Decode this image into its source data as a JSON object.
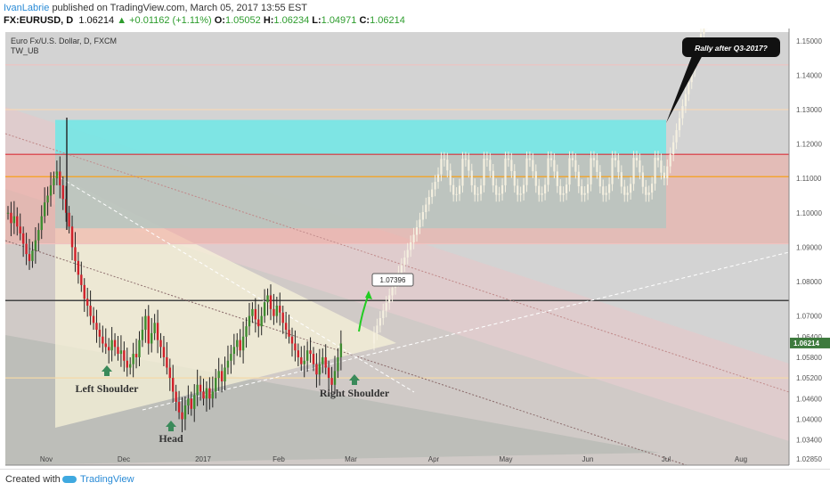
{
  "header": {
    "author": "IvanLabrie",
    "published": "published on TradingView.com, March 05, 2017 13:55 EST",
    "symbol": "FX:EURUSD, D",
    "last": "1.06214",
    "change": "▲ +0.01162 (+1.11%)",
    "o_label": "O:",
    "o_val": "1.05052",
    "h_label": "H:",
    "h_val": "1.06234",
    "l_label": "L:",
    "l_val": "1.04971",
    "c_label": "C:",
    "c_val": "1.06214"
  },
  "footer": {
    "created_with": "Created with",
    "brand": "TradingView"
  },
  "chart_data": {
    "type": "candlestick",
    "title": "Euro Fx/U.S. Dollar, D, FXCM",
    "indicator": "TW_UB",
    "y_ticks": [
      "1.15000",
      "1.14000",
      "1.13000",
      "1.12000",
      "1.11000",
      "1.10000",
      "1.09000",
      "1.08000",
      "1.07000",
      "1.06400",
      "1.05800",
      "1.05200",
      "1.04600",
      "1.04000",
      "1.03400",
      "1.02850"
    ],
    "y_tick_values": [
      1.15,
      1.14,
      1.13,
      1.12,
      1.11,
      1.1,
      1.09,
      1.08,
      1.07,
      1.064,
      1.058,
      1.052,
      1.046,
      1.04,
      1.034,
      1.0285
    ],
    "ylim": [
      1.025,
      1.158
    ],
    "x_ticks": [
      "Nov",
      "Dec",
      "2017",
      "Feb",
      "Mar",
      "Apr",
      "May",
      "Jun",
      "Jul",
      "Aug"
    ],
    "current_price": "1.06214",
    "callout_price": "1.07396",
    "callout_text": "Rally after Q3-2017?",
    "pattern_labels": [
      "Left Shoulder",
      "Head",
      "Right Shoulder"
    ],
    "horizontal_levels": [
      1.143,
      1.13,
      1.117,
      1.1105,
      1.091,
      1.0745,
      1.052
    ],
    "zones": [
      {
        "from": 1.0955,
        "to": 1.127,
        "color": "#6ee8e6"
      },
      {
        "from": 1.091,
        "to": 1.117,
        "color": "#f0a9a0"
      }
    ],
    "colors": {
      "bull": "#3d8b2f",
      "bear": "#d0202a",
      "projection": "#f5f0e0",
      "up_arrow": "#22cc22",
      "marker": "#3a8a5a"
    }
  }
}
